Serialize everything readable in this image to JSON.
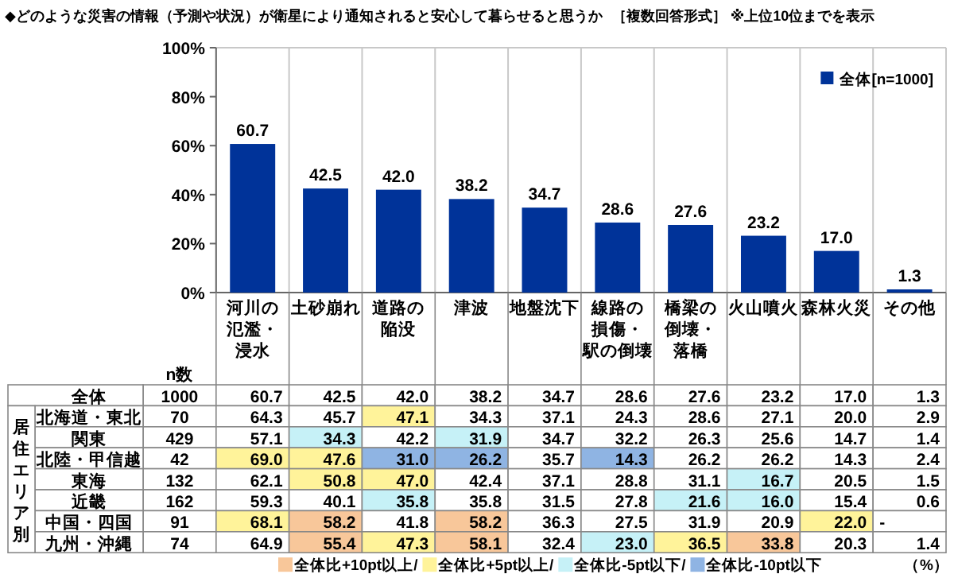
{
  "chart_data": [
    {
      "type": "bar",
      "title": "◆どのような災害の情報（予測や状況）が衛星により通知されると安心して暮らせると思うか",
      "subtitle": "［複数回答形式］ ※上位10位までを表示",
      "categories": [
        "河川の氾濫・浸水",
        "土砂崩れ",
        "道路の陥没",
        "津波",
        "地盤沈下",
        "線路の損傷・駅の倒壊",
        "橋梁の倒壊・落橋",
        "火山噴火",
        "森林火災",
        "その他"
      ],
      "series": [
        {
          "name": "全体[n=1000]",
          "color": "#003399",
          "values": [
            60.7,
            42.5,
            42.0,
            38.2,
            34.7,
            28.6,
            27.6,
            23.2,
            17.0,
            1.3
          ],
          "value_labels": [
            "60.7",
            "42.5",
            "42.0",
            "38.2",
            "34.7",
            "28.6",
            "27.6",
            "23.2",
            "17.0",
            "1.3"
          ]
        }
      ],
      "ylim": [
        0,
        100
      ],
      "yticks": [
        {
          "value": 0,
          "label": "0%"
        },
        {
          "value": 20,
          "label": "20%"
        },
        {
          "value": 40,
          "label": "40%"
        },
        {
          "value": 60,
          "label": "60%"
        },
        {
          "value": 80,
          "label": "80%"
        },
        {
          "value": 100,
          "label": "100%"
        }
      ],
      "grid": "x",
      "legend": "top right"
    },
    {
      "type": "heatmap",
      "categories": [
        null,
        null,
        null,
        null,
        null,
        null,
        null,
        null,
        null,
        null,
        null
      ],
      "y_categories": [
        "全体",
        "北海道・東北",
        "関東",
        "北陸・甲信越",
        "東海",
        "近畿",
        "中国・四国",
        "九州・沖縄"
      ],
      "cells": [
        [
          1000,
          60.7,
          42.5,
          42.0,
          38.2,
          34.7,
          28.6,
          27.6,
          23.2,
          17.0,
          1.3
        ],
        [
          70,
          64.3,
          45.7,
          47.1,
          34.3,
          37.1,
          24.3,
          28.6,
          27.1,
          20.0,
          2.9
        ],
        [
          429,
          57.1,
          34.3,
          42.2,
          31.9,
          34.7,
          32.2,
          26.3,
          25.6,
          14.7,
          1.4
        ],
        [
          42,
          69.0,
          47.6,
          31.0,
          26.2,
          35.7,
          14.3,
          26.2,
          26.2,
          14.3,
          2.4
        ],
        [
          132,
          62.1,
          50.8,
          47.0,
          42.4,
          37.1,
          28.8,
          31.1,
          16.7,
          20.5,
          1.5
        ],
        [
          162,
          59.3,
          40.1,
          35.8,
          35.8,
          31.5,
          27.8,
          21.6,
          16.0,
          15.4,
          0.6
        ],
        [
          91,
          68.1,
          58.2,
          41.8,
          58.2,
          36.3,
          27.5,
          31.9,
          20.9,
          22.0,
          null
        ],
        [
          74,
          64.9,
          55.4,
          47.3,
          58.1,
          32.4,
          23.0,
          36.5,
          33.8,
          20.3,
          1.4
        ]
      ],
      "cell_labels": [
        [
          "1000",
          "60.7",
          "42.5",
          "42.0",
          "38.2",
          "34.7",
          "28.6",
          "27.6",
          "23.2",
          "17.0",
          "1.3"
        ],
        [
          "70",
          "64.3",
          "45.7",
          "47.1",
          "34.3",
          "37.1",
          "24.3",
          "28.6",
          "27.1",
          "20.0",
          "2.9"
        ],
        [
          "429",
          "57.1",
          "34.3",
          "42.2",
          "31.9",
          "34.7",
          "32.2",
          "26.3",
          "25.6",
          "14.7",
          "1.4"
        ],
        [
          "42",
          "69.0",
          "47.6",
          "31.0",
          "26.2",
          "35.7",
          "14.3",
          "26.2",
          "26.2",
          "14.3",
          "2.4"
        ],
        [
          "132",
          "62.1",
          "50.8",
          "47.0",
          "42.4",
          "37.1",
          "28.8",
          "31.1",
          "16.7",
          "20.5",
          "1.5"
        ],
        [
          "162",
          "59.3",
          "40.1",
          "35.8",
          "35.8",
          "31.5",
          "27.8",
          "21.6",
          "16.0",
          "15.4",
          "0.6"
        ],
        [
          "91",
          "68.1",
          "58.2",
          "41.8",
          "58.2",
          "36.3",
          "27.5",
          "31.9",
          "20.9",
          "22.0",
          "-"
        ],
        [
          "74",
          "64.9",
          "55.4",
          "47.3",
          "58.1",
          "32.4",
          "23.0",
          "36.5",
          "33.8",
          "20.3",
          "1.4"
        ]
      ],
      "annotations": [
        "居住エリア別",
        "全体比+10pt以上/",
        "全体比+5pt以上/",
        "全体比-5pt以下/",
        "全体比-10pt以下",
        "（%）",
        "n数"
      ]
    }
  ]
}
